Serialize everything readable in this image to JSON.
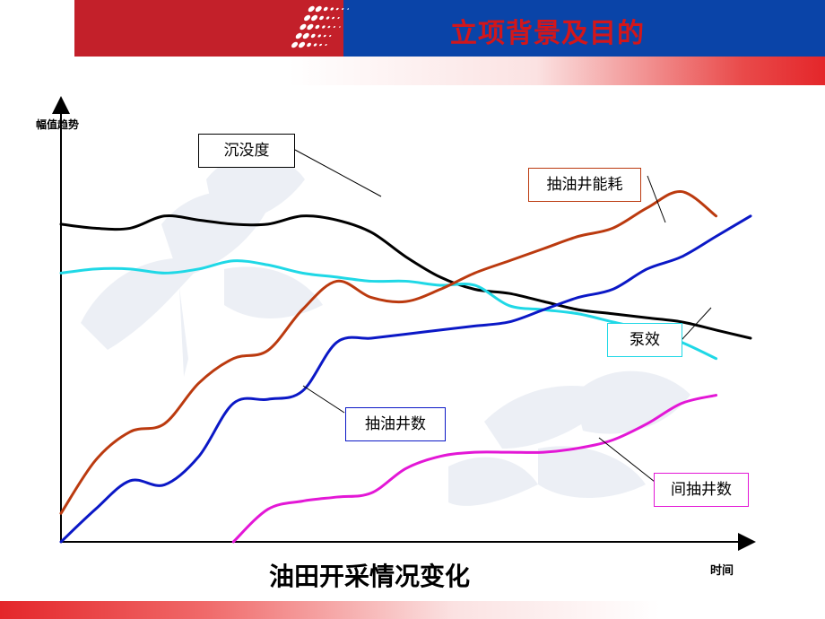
{
  "header": {
    "title": "立项背景及目的"
  },
  "chart_data": {
    "type": "line",
    "title": "油田开采情况变化",
    "xlabel": "时间",
    "ylabel": "幅值趋势",
    "grid": false,
    "series": [
      {
        "name": "沉没度",
        "color": "#000000",
        "x": [
          0,
          5,
          10,
          15,
          20,
          25,
          30,
          35,
          40,
          45,
          50,
          55,
          60,
          65,
          70,
          75,
          80,
          85,
          90,
          95,
          100
        ],
        "values": [
          78,
          77,
          77,
          80,
          79,
          78,
          78,
          80,
          79,
          76,
          70,
          65,
          62,
          61,
          59,
          57,
          56,
          55,
          54,
          52,
          50
        ]
      },
      {
        "name": "泵效",
        "color": "#1fd8e6",
        "x": [
          0,
          5,
          10,
          15,
          20,
          25,
          30,
          35,
          40,
          45,
          50,
          55,
          60,
          65,
          70,
          75,
          80,
          85,
          90,
          95
        ],
        "values": [
          66,
          67,
          67,
          66,
          67,
          69,
          68,
          66,
          65,
          64,
          64,
          63,
          63,
          58,
          57,
          56,
          54,
          52,
          49,
          45
        ]
      },
      {
        "name": "抽油井能耗",
        "color": "#bb3a0f",
        "x": [
          0,
          5,
          10,
          15,
          20,
          25,
          30,
          35,
          40,
          45,
          50,
          55,
          60,
          65,
          70,
          75,
          80,
          85,
          90,
          95
        ],
        "values": [
          7,
          20,
          27,
          29,
          39,
          45,
          47,
          57,
          64,
          60,
          59,
          62,
          66,
          69,
          72,
          75,
          77,
          82,
          86,
          80
        ]
      },
      {
        "name": "抽油井数",
        "color": "#0b18c6",
        "x": [
          0,
          5,
          10,
          15,
          20,
          25,
          30,
          35,
          40,
          45,
          50,
          55,
          60,
          65,
          70,
          75,
          80,
          85,
          90,
          95,
          100
        ],
        "values": [
          0,
          8,
          15,
          14,
          21,
          34,
          35,
          37,
          49,
          50,
          51,
          52,
          53,
          54,
          57,
          60,
          62,
          67,
          70,
          75,
          80
        ]
      },
      {
        "name": "间抽井数",
        "color": "#e317d6",
        "x": [
          25,
          30,
          35,
          40,
          45,
          50,
          55,
          60,
          65,
          70,
          75,
          80,
          85,
          90,
          95
        ],
        "values": [
          0,
          8,
          10,
          11,
          12,
          18,
          21,
          22,
          22,
          22,
          23,
          25,
          29,
          34,
          36
        ]
      }
    ],
    "annotations": [
      "沉没度",
      "抽油井能耗",
      "泵效",
      "抽油井数",
      "间抽井数"
    ]
  }
}
